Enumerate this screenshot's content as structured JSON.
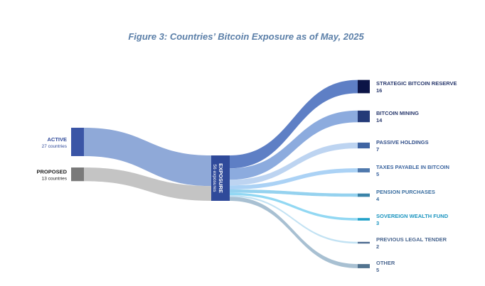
{
  "title": "Figure 3: Countries’ Bitcoin Exposure as of May, 2025",
  "colors": {
    "title": "#5b7fa8",
    "active_node": "#3a55a6",
    "active_flow": "#8fa9d8",
    "proposed_node": "#7a7a7a",
    "proposed_flow": "#c4c4c4",
    "center_node": "#2f4a9a"
  },
  "center": {
    "label": "EXPOSURE",
    "sub": "56 exposures"
  },
  "sources": [
    {
      "label": "ACTIVE",
      "sub": "27 countries",
      "value": 27
    },
    {
      "label": "PROPOSED",
      "sub": "13 countries",
      "value": 13
    }
  ],
  "targets": [
    {
      "label": "STRATEGIC BITCOIN RESERVE",
      "value": 16,
      "value_label": "16",
      "node_color": "#0b1446",
      "flow_color": "#5578c2",
      "label_color": "#2a3a6e"
    },
    {
      "label": "BITCOIN MINING",
      "value": 14,
      "value_label": "14",
      "node_color": "#243a78",
      "flow_color": "#86a6dc",
      "label_color": "#2a3a6e"
    },
    {
      "label": "PASSIVE HOLDINGS",
      "value": 7,
      "value_label": "7",
      "node_color": "#3f64a2",
      "flow_color": "#b9d2f0",
      "label_color": "#33508a"
    },
    {
      "label": "TAXES PAYABLE IN BITCOIN",
      "value": 5,
      "value_label": "5",
      "node_color": "#4f79ad",
      "flow_color": "#a7d0f4",
      "label_color": "#3d66a0"
    },
    {
      "label": "PENSION PURCHASES",
      "value": 4,
      "value_label": "4",
      "node_color": "#3a83a8",
      "flow_color": "#8fd0ee",
      "label_color": "#3a6ea0"
    },
    {
      "label": "SOVEREIGN WEALTH FUND",
      "value": 3,
      "value_label": "3",
      "node_color": "#1fa0c8",
      "flow_color": "#8cd6f2",
      "label_color": "#1b95c0"
    },
    {
      "label": "PREVIOUS LEGAL TENDER",
      "value": 2,
      "value_label": "2",
      "node_color": "#4c6a90",
      "flow_color": "#bfe0f2",
      "label_color": "#4a6690"
    },
    {
      "label": "OTHER",
      "value": 5,
      "value_label": "5",
      "node_color": "#52738f",
      "flow_color": "#a3bdd0",
      "label_color": "#4a6690"
    }
  ]
}
